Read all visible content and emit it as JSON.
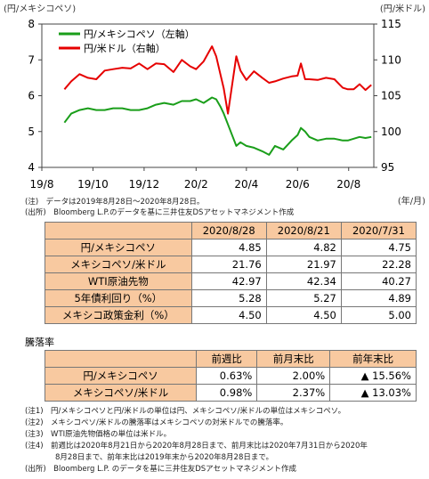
{
  "chart_data": {
    "type": "line",
    "left_axis_unit": "(円/メキシコペソ)",
    "right_axis_unit": "(円/米ドル)",
    "x_unit": "(年/月)",
    "x_ticks": [
      "19/8",
      "19/10",
      "19/12",
      "20/2",
      "20/4",
      "20/6",
      "20/8"
    ],
    "left_ticks": [
      "4",
      "5",
      "6",
      "7",
      "8"
    ],
    "right_ticks": [
      "95",
      "100",
      "105",
      "110",
      "115"
    ],
    "ylim_left": [
      4,
      8
    ],
    "ylim_right": [
      95,
      115
    ],
    "legend_placement": "top-left",
    "series": [
      {
        "name": "円/メキシコペソ（左軸）",
        "axis": "left",
        "color": "#1a9e1a",
        "x": [
          "2019-08-28",
          "2019-09-05",
          "2019-09-15",
          "2019-09-25",
          "2019-10-05",
          "2019-10-15",
          "2019-10-25",
          "2019-11-05",
          "2019-11-15",
          "2019-11-25",
          "2019-12-05",
          "2019-12-15",
          "2019-12-25",
          "2020-01-05",
          "2020-01-15",
          "2020-01-25",
          "2020-02-01",
          "2020-02-10",
          "2020-02-20",
          "2020-02-25",
          "2020-03-01",
          "2020-03-05",
          "2020-03-10",
          "2020-03-15",
          "2020-03-20",
          "2020-03-25",
          "2020-04-01",
          "2020-04-10",
          "2020-04-20",
          "2020-04-28",
          "2020-05-05",
          "2020-05-15",
          "2020-05-25",
          "2020-06-01",
          "2020-06-05",
          "2020-06-10",
          "2020-06-15",
          "2020-06-25",
          "2020-07-05",
          "2020-07-15",
          "2020-07-25",
          "2020-07-31",
          "2020-08-07",
          "2020-08-14",
          "2020-08-21",
          "2020-08-28"
        ],
        "values": [
          5.25,
          5.5,
          5.6,
          5.65,
          5.6,
          5.6,
          5.65,
          5.65,
          5.6,
          5.6,
          5.65,
          5.75,
          5.8,
          5.75,
          5.85,
          5.85,
          5.9,
          5.8,
          5.95,
          5.9,
          5.7,
          5.5,
          5.2,
          4.9,
          4.6,
          4.7,
          4.6,
          4.55,
          4.45,
          4.35,
          4.6,
          4.5,
          4.75,
          4.9,
          5.1,
          5.0,
          4.85,
          4.75,
          4.8,
          4.8,
          4.75,
          4.75,
          4.8,
          4.85,
          4.82,
          4.85
        ]
      },
      {
        "name": "円/米ドル（右軸）",
        "axis": "right",
        "color": "#e60000",
        "x": [
          "2019-08-28",
          "2019-09-05",
          "2019-09-15",
          "2019-09-25",
          "2019-10-05",
          "2019-10-15",
          "2019-10-25",
          "2019-11-05",
          "2019-11-15",
          "2019-11-25",
          "2019-12-05",
          "2019-12-15",
          "2019-12-25",
          "2020-01-05",
          "2020-01-15",
          "2020-01-25",
          "2020-02-01",
          "2020-02-10",
          "2020-02-20",
          "2020-02-25",
          "2020-03-01",
          "2020-03-05",
          "2020-03-10",
          "2020-03-15",
          "2020-03-20",
          "2020-03-25",
          "2020-04-01",
          "2020-04-10",
          "2020-04-20",
          "2020-04-28",
          "2020-05-05",
          "2020-05-15",
          "2020-05-25",
          "2020-06-01",
          "2020-06-05",
          "2020-06-10",
          "2020-06-15",
          "2020-06-25",
          "2020-07-05",
          "2020-07-15",
          "2020-07-25",
          "2020-07-31",
          "2020-08-07",
          "2020-08-14",
          "2020-08-21",
          "2020-08-28"
        ],
        "values": [
          105.9,
          107.0,
          108.0,
          107.5,
          107.3,
          108.5,
          108.7,
          108.9,
          108.8,
          109.5,
          108.7,
          109.5,
          109.4,
          108.3,
          110.0,
          109.1,
          108.7,
          109.8,
          111.9,
          110.5,
          108.0,
          106.0,
          102.5,
          106.5,
          110.5,
          108.5,
          107.2,
          108.4,
          107.5,
          106.8,
          107.0,
          107.4,
          107.7,
          107.8,
          109.5,
          107.3,
          107.3,
          107.2,
          107.5,
          107.3,
          106.1,
          105.9,
          105.9,
          106.6,
          105.8,
          106.5
        ]
      }
    ]
  },
  "chart_notes": [
    "(注)　データは2019年8月28日～2020年8月28日。",
    "(出所)　Bloomberg L.P.のデータを基に三井住友DSアセットマネジメント作成"
  ],
  "table1": {
    "headers": [
      "2020/8/28",
      "2020/8/21",
      "2020/7/31"
    ],
    "rows": [
      {
        "label": "円/メキシコペソ",
        "values": [
          "4.85",
          "4.82",
          "4.75"
        ]
      },
      {
        "label": "メキシコペソ/米ドル",
        "values": [
          "21.76",
          "21.97",
          "22.28"
        ]
      },
      {
        "label": "WTI原油先物",
        "values": [
          "42.97",
          "42.34",
          "40.27"
        ]
      },
      {
        "label": "5年債利回り（%）",
        "values": [
          "5.28",
          "5.27",
          "4.89"
        ]
      },
      {
        "label": "メキシコ政策金利（%）",
        "values": [
          "4.50",
          "4.50",
          "5.00"
        ]
      }
    ]
  },
  "change_section_title": "騰落率",
  "table2": {
    "headers": [
      "前週比",
      "前月末比",
      "前年末比"
    ],
    "rows": [
      {
        "label": "円/メキシコペソ",
        "values": [
          "0.63%",
          "2.00%",
          "▲ 15.56%"
        ]
      },
      {
        "label": "メキシコペソ/米ドル",
        "values": [
          "0.98%",
          "2.37%",
          "▲ 13.03%"
        ]
      }
    ]
  },
  "footnotes": [
    "(注1)　円/メキシコペソと円/米ドルの単位は円、メキシコペソ/米ドルの単位はメキシコペソ。",
    "(注2)　メキシコペソ/米ドルの騰落率はメキシコペソの対米ドルでの騰落率。",
    "(注3)　WTI原油先物価格の単位は米ドル。",
    "(注4)　前週比は2020年8月21日から2020年8月28日まで、前月末比は2020年7月31日から2020年",
    "　　　　8月28日まで、前年末比は2019年末から2020年8月28日まで。",
    "(出所)　Bloomberg L.P. のデータを基に三井住友DSアセットマネジメント作成"
  ]
}
